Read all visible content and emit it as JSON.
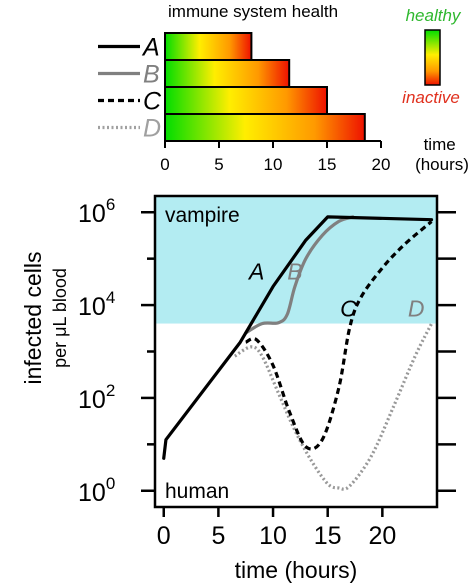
{
  "chart_data": [
    {
      "type": "bar",
      "title": "immune system health",
      "xlabel": "time\n(hours)",
      "xlim": [
        0,
        20
      ],
      "xticks": [
        0,
        5,
        10,
        15,
        20
      ],
      "legend_labels": [
        "A",
        "B",
        "C",
        "D"
      ],
      "colorbar": {
        "top_label": "healthy",
        "bottom_label": "inactive",
        "top_color": "#2eb82e",
        "bottom_color": "#e0301e"
      },
      "series": [
        {
          "label": "A",
          "value": 8.0,
          "line_style": "solid",
          "line_color": "#000000"
        },
        {
          "label": "B",
          "value": 11.5,
          "line_style": "solid",
          "line_color": "#808080"
        },
        {
          "label": "C",
          "value": 15.0,
          "line_style": "dashed",
          "line_color": "#000000"
        },
        {
          "label": "D",
          "value": 18.5,
          "line_style": "dotted",
          "line_color": "#a0a0a0"
        }
      ],
      "bar_gradient": [
        "#00dd00",
        "#ffee00",
        "#ff9900",
        "#ee1100"
      ]
    },
    {
      "type": "line",
      "xlabel": "time (hours)",
      "ylabel": "infected cells",
      "ylabel_sub": "per μL blood",
      "xlim": [
        -0.8,
        25
      ],
      "xticks": [
        0,
        5,
        10,
        15,
        20
      ],
      "yscale": "log",
      "ylim_log10": [
        -0.35,
        6.35
      ],
      "yticks_log10": [
        0,
        2,
        4,
        6
      ],
      "ytick_labels": [
        {
          "base": "10",
          "exp": "0"
        },
        {
          "base": "10",
          "exp": "2"
        },
        {
          "base": "10",
          "exp": "4"
        },
        {
          "base": "10",
          "exp": "6"
        }
      ],
      "regions": [
        {
          "label": "vampire",
          "log10_from": 3.6,
          "log10_to": 6.35,
          "color": "#b3ecf2"
        },
        {
          "label": "human",
          "log10_from": -0.35,
          "log10_to": 3.6,
          "color": "#ffffff"
        }
      ],
      "series": [
        {
          "name": "A",
          "color": "#000000",
          "style": "solid",
          "x": [
            0,
            0.2,
            7,
            10,
            13,
            15,
            24.5
          ],
          "log10_y": [
            0.7,
            1.1,
            3.2,
            4.4,
            5.4,
            5.9,
            5.84
          ]
        },
        {
          "name": "B",
          "color": "#808080",
          "style": "solid",
          "x": [
            7.5,
            9,
            10.5,
            11.3,
            12,
            13,
            14.5,
            16,
            17.3
          ],
          "log10_y": [
            3.4,
            3.6,
            3.62,
            3.8,
            4.4,
            5.0,
            5.5,
            5.8,
            5.9
          ]
        },
        {
          "name": "C",
          "color": "#000000",
          "style": "dashed",
          "x": [
            7.5,
            8.5,
            10,
            11.5,
            13,
            14.5,
            16,
            17,
            18,
            20,
            22,
            24.5
          ],
          "log10_y": [
            3.2,
            3.25,
            2.7,
            1.7,
            0.95,
            1.1,
            2.2,
            3.5,
            4.15,
            4.8,
            5.3,
            5.8
          ]
        },
        {
          "name": "D",
          "color": "#999999",
          "style": "dotted",
          "x": [
            6.5,
            8,
            9,
            10.5,
            12,
            13.5,
            15,
            16,
            17,
            19,
            21,
            23,
            24.5
          ],
          "log10_y": [
            2.9,
            3.1,
            2.9,
            2.1,
            1.3,
            0.65,
            0.15,
            0.06,
            0.1,
            0.75,
            1.8,
            2.9,
            3.6
          ]
        }
      ],
      "curve_labels": [
        {
          "text": "A",
          "x": 8.5,
          "log10_y": 4.55,
          "color": "#000000"
        },
        {
          "text": "B",
          "x": 12.0,
          "log10_y": 4.55,
          "color": "#808080"
        },
        {
          "text": "C",
          "x": 16.9,
          "log10_y": 3.75,
          "color": "#000000"
        },
        {
          "text": "D",
          "x": 23.1,
          "log10_y": 3.75,
          "color": "#808080"
        }
      ]
    }
  ]
}
